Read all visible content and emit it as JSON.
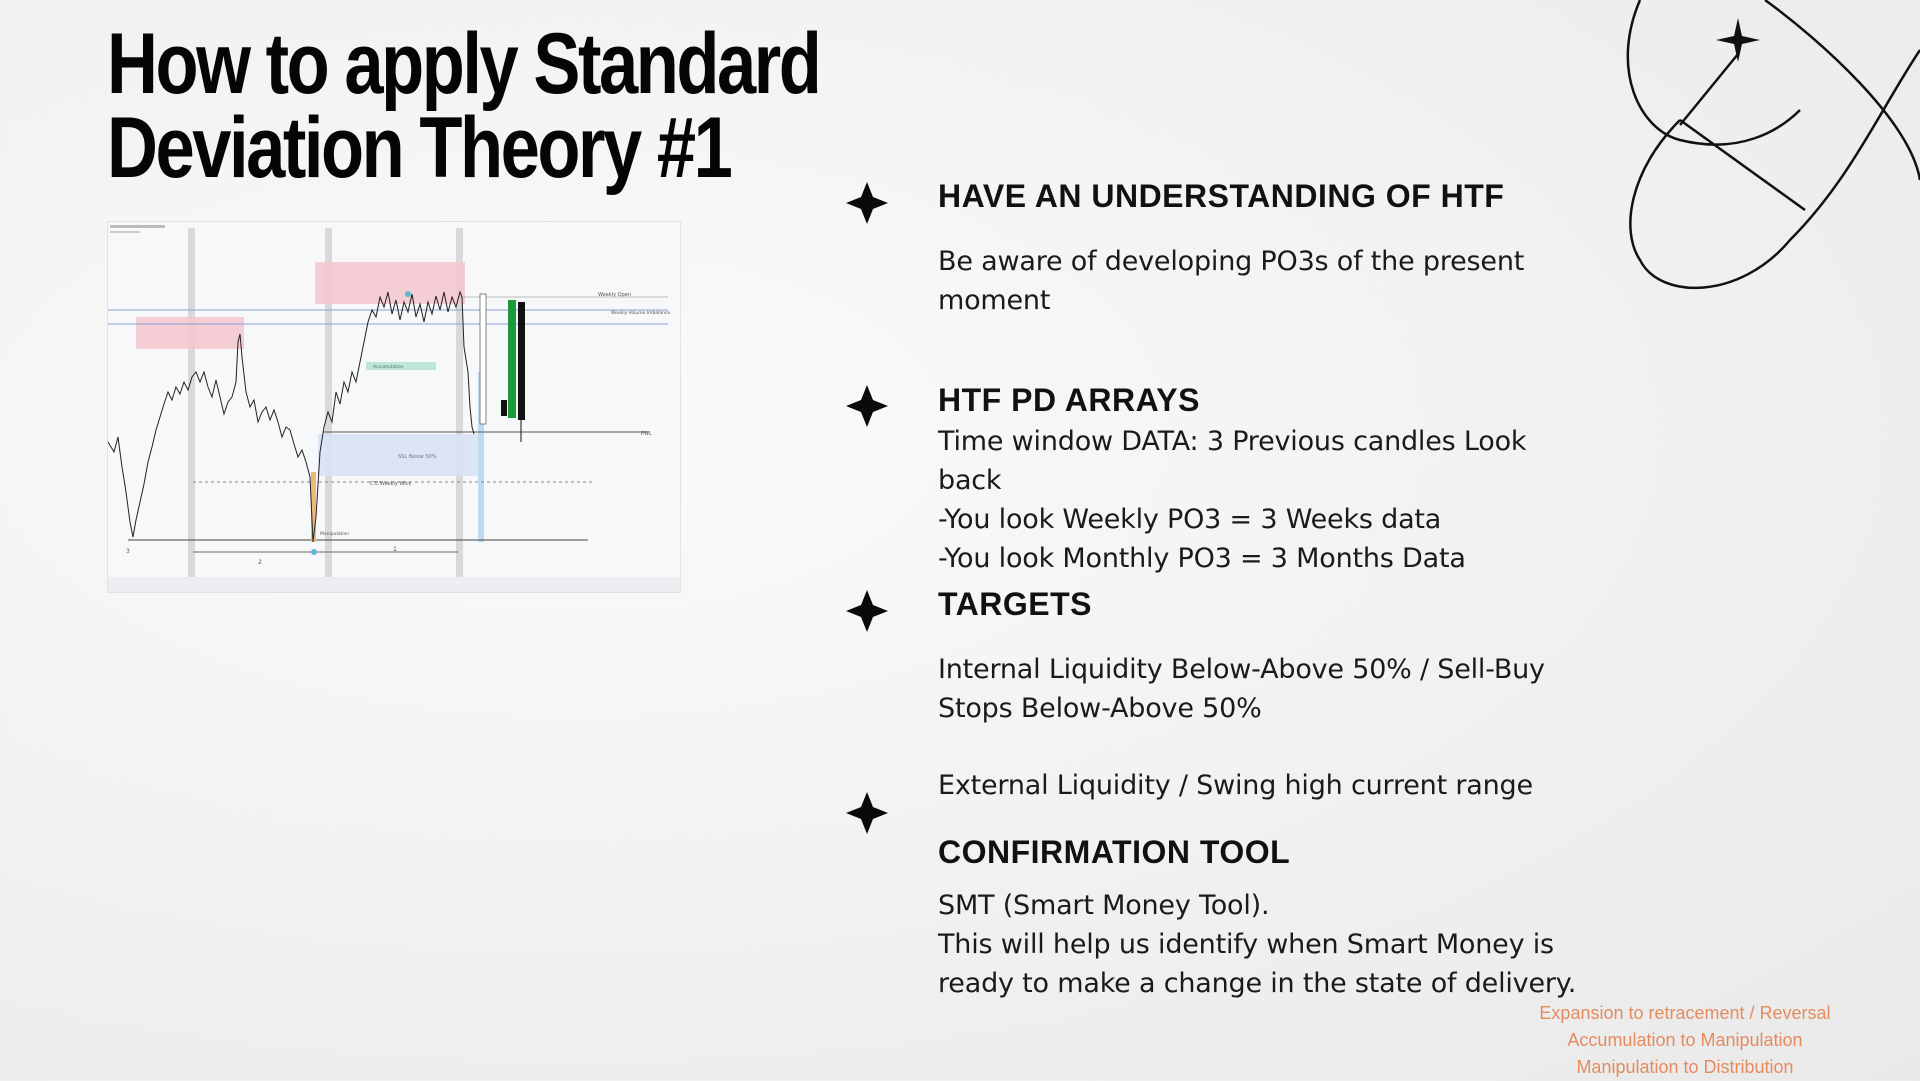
{
  "title": {
    "line1": "How to apply Standard",
    "line2": "Deviation Theory #1"
  },
  "sections": [
    {
      "heading": "HAVE AN UNDERSTANDING OF HTF",
      "lines": [
        "Be aware of developing PO3s of the present",
        "moment"
      ]
    },
    {
      "heading": "HTF PD ARRAYS",
      "lines": [
        "Time window DATA: 3 Previous candles Look",
        "back",
        "-You look Weekly PO3 = 3 Weeks data",
        "-You look Monthly PO3 = 3 Months Data"
      ]
    },
    {
      "heading": "TARGETS",
      "lines": [
        "Internal Liquidity Below-Above 50% / Sell-Buy",
        "Stops Below-Above 50%"
      ],
      "extra_line": "External Liquidity / Swing high current range"
    },
    {
      "heading": "CONFIRMATION TOOL",
      "lines": [
        "SMT (Smart Money Tool).",
        "This will help us identify when Smart Money is",
        "ready to make a change in the state of delivery."
      ]
    }
  ],
  "footer": {
    "lines": [
      "Expansion to retracement / Reversal",
      "Accumulation to Manipulation",
      "Manipulation to Distribution"
    ]
  },
  "chart_screenshot": {
    "labels": {
      "weekly_open": "Weekly Open",
      "weekly_volume_imbalance": "Weekly Volume Imbalance",
      "accumulation": "Accumulation",
      "ssl_below": "SSL Below 50%",
      "ce_weekly_wick": "C.E Weekly Wick",
      "manipulation": "Manipulation",
      "pwl": "PWL",
      "num1": "1",
      "num2": "2",
      "num3": "3"
    }
  },
  "colors": {
    "footer_text": "#e58b5f",
    "bullet": "#0a0a0a",
    "candle_green": "#1f9a3a"
  },
  "icons": {
    "bullet": "four-point-star-icon",
    "deco": "orbit-sparkle-icon"
  }
}
